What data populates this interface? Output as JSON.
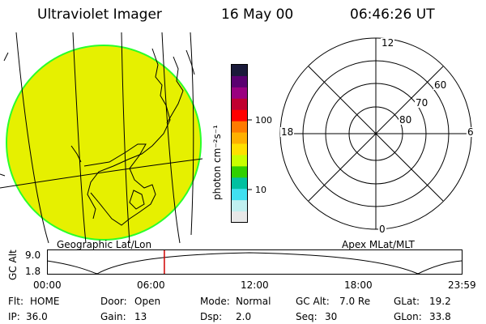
{
  "header": {
    "instrument": "Ultraviolet Imager",
    "date": "16 May 00",
    "time": "06:46:26 UT"
  },
  "colorbar": {
    "unit_label": "photon cm⁻²s⁻¹",
    "ticks": [
      "100",
      "10"
    ],
    "colors_top_to_bottom": [
      "#1a1a3a",
      "#5a0070",
      "#9a0080",
      "#c00030",
      "#ff0000",
      "#ff7a00",
      "#ffb000",
      "#ffe000",
      "#c8ff00",
      "#30d000",
      "#00c0a0",
      "#40e0f0",
      "#c0f0f0",
      "#e8e8e8"
    ],
    "levels": [
      100,
      10
    ]
  },
  "left_panel": {
    "title": "Geographic Lat/Lon",
    "fill_color": "#e6f000",
    "rim_color": "#2aff2a"
  },
  "right_panel": {
    "title": "Apex MLat/MLT",
    "mlt_labels": {
      "top": "12",
      "left": "18",
      "right": "6",
      "bottom": "0"
    },
    "lat_labels": [
      "60",
      "70",
      "80"
    ]
  },
  "timeline": {
    "axis_label": "GC Alt",
    "y_ticks": [
      "9.0",
      "1.8"
    ],
    "x_ticks": [
      "00:00",
      "06:00",
      "12:00",
      "18:00",
      "23:59"
    ],
    "current_time_fraction": 0.282,
    "marker_color": "#d00000"
  },
  "status": {
    "flt_label": "Flt:",
    "flt_value": "HOME",
    "ip_label": "IP:",
    "ip_value": "36.0",
    "door_label": "Door:",
    "door_value": "Open",
    "gain_label": "Gain:",
    "gain_value": "13",
    "mode_label": "Mode:",
    "mode_value": "Normal",
    "dsp_label": "Dsp:",
    "dsp_value": "2.0",
    "gcalt_label": "GC Alt:",
    "gcalt_value": "7.0 Re",
    "seq_label": "Seq:",
    "seq_value": "30",
    "glat_label": "GLat:",
    "glat_value": "19.2",
    "glon_label": "GLon:",
    "glon_value": "33.8"
  }
}
